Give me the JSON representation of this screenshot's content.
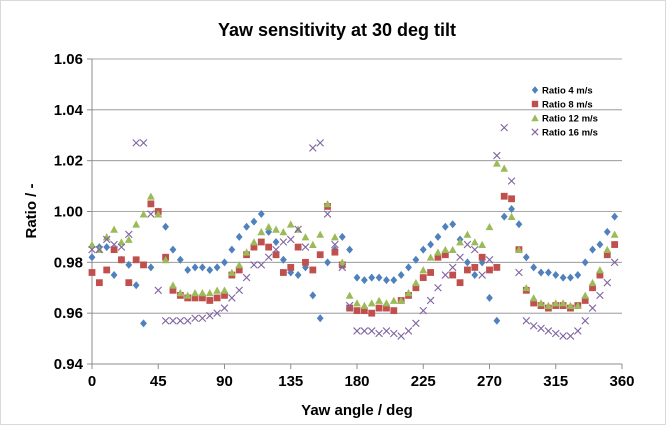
{
  "chart_data": {
    "type": "scatter",
    "title": "Yaw sensitivity at 30 deg tilt",
    "xlabel": "Yaw angle / deg",
    "ylabel": "Ratio / -",
    "xlim": [
      0,
      360
    ],
    "ylim": [
      0.94,
      1.06
    ],
    "xticks": [
      0,
      45,
      90,
      135,
      180,
      225,
      270,
      315,
      360
    ],
    "xtick_labels": [
      "0",
      "45",
      "90",
      "135",
      "180",
      "225",
      "270",
      "315",
      "360"
    ],
    "yticks": [
      0.94,
      0.96,
      0.98,
      1.0,
      1.02,
      1.04,
      1.06
    ],
    "ytick_labels": [
      "0.94",
      "0.96",
      "0.98",
      "1.00",
      "1.02",
      "1.04",
      "1.06"
    ],
    "grid": "horizontal",
    "legend_position": "right",
    "x": [
      0,
      5,
      10,
      15,
      20,
      25,
      30,
      35,
      40,
      45,
      50,
      55,
      60,
      65,
      70,
      75,
      80,
      85,
      90,
      95,
      100,
      105,
      110,
      115,
      120,
      125,
      130,
      135,
      140,
      145,
      150,
      155,
      160,
      165,
      170,
      175,
      180,
      185,
      190,
      195,
      200,
      205,
      210,
      215,
      220,
      225,
      230,
      235,
      240,
      245,
      250,
      255,
      260,
      265,
      270,
      275,
      280,
      285,
      290,
      295,
      300,
      305,
      310,
      315,
      320,
      325,
      330,
      335,
      340,
      345,
      350,
      355
    ],
    "series": [
      {
        "name": "Ratio 4 m/s",
        "color": "#4f81bd",
        "marker": "diamond",
        "values": [
          0.982,
          0.986,
          0.986,
          0.975,
          0.981,
          0.979,
          0.971,
          0.956,
          0.978,
          1.0,
          0.994,
          0.985,
          0.981,
          0.977,
          0.978,
          0.978,
          0.977,
          0.978,
          0.98,
          0.985,
          0.99,
          0.994,
          0.996,
          0.999,
          0.992,
          0.988,
          0.981,
          0.976,
          0.975,
          0.978,
          0.967,
          0.958,
          0.98,
          0.985,
          0.99,
          0.985,
          0.974,
          0.973,
          0.974,
          0.974,
          0.973,
          0.973,
          0.975,
          0.978,
          0.981,
          0.985,
          0.987,
          0.99,
          0.994,
          0.995,
          0.989,
          0.98,
          0.975,
          0.98,
          0.966,
          0.957,
          0.998,
          1.001,
          0.995,
          0.982,
          0.978,
          0.976,
          0.976,
          0.975,
          0.974,
          0.974,
          0.975,
          0.98,
          0.985,
          0.987,
          0.992,
          0.998
        ]
      },
      {
        "name": "Ratio 8 m/s",
        "color": "#c0504d",
        "marker": "square",
        "values": [
          0.976,
          0.972,
          0.977,
          0.985,
          0.981,
          0.972,
          0.981,
          0.979,
          1.003,
          1.0,
          0.982,
          0.969,
          0.967,
          0.966,
          0.966,
          0.966,
          0.965,
          0.966,
          0.967,
          0.975,
          0.977,
          0.983,
          0.986,
          0.988,
          0.986,
          0.983,
          0.976,
          0.978,
          0.986,
          0.98,
          0.977,
          0.983,
          1.002,
          0.984,
          0.979,
          0.962,
          0.961,
          0.961,
          0.96,
          0.962,
          0.962,
          0.961,
          0.965,
          0.967,
          0.97,
          0.974,
          0.976,
          0.982,
          0.983,
          0.975,
          0.972,
          0.977,
          0.978,
          0.982,
          0.977,
          0.978,
          1.006,
          1.005,
          0.985,
          0.969,
          0.964,
          0.963,
          0.962,
          0.963,
          0.963,
          0.962,
          0.963,
          0.965,
          0.97,
          0.975,
          0.983,
          0.987
        ]
      },
      {
        "name": "Ratio 12 m/s",
        "color": "#9bbb59",
        "marker": "triangle",
        "values": [
          0.987,
          0.985,
          0.99,
          0.993,
          0.988,
          0.989,
          0.995,
          0.999,
          1.006,
          0.999,
          0.981,
          0.971,
          0.968,
          0.967,
          0.968,
          0.968,
          0.968,
          0.969,
          0.969,
          0.976,
          0.979,
          0.984,
          0.988,
          0.992,
          0.994,
          0.993,
          0.992,
          0.995,
          0.993,
          0.99,
          0.987,
          0.991,
          1.003,
          0.99,
          0.98,
          0.967,
          0.964,
          0.963,
          0.964,
          0.965,
          0.964,
          0.965,
          0.965,
          0.968,
          0.972,
          0.977,
          0.982,
          0.984,
          0.985,
          0.985,
          0.988,
          0.991,
          0.988,
          0.987,
          0.994,
          1.019,
          1.017,
          0.998,
          0.985,
          0.97,
          0.966,
          0.964,
          0.963,
          0.964,
          0.964,
          0.963,
          0.963,
          0.967,
          0.972,
          0.977,
          0.985,
          0.991
        ]
      },
      {
        "name": "Ratio 16 m/s",
        "color": "#8064a2",
        "marker": "x",
        "values": [
          0.985,
          0.985,
          0.989,
          0.987,
          0.986,
          0.991,
          1.027,
          1.027,
          0.999,
          0.969,
          0.957,
          0.957,
          0.957,
          0.957,
          0.958,
          0.958,
          0.959,
          0.96,
          0.962,
          0.966,
          0.969,
          0.974,
          0.979,
          0.979,
          0.982,
          0.985,
          0.988,
          0.989,
          0.993,
          0.986,
          1.025,
          1.027,
          0.999,
          0.987,
          0.978,
          0.963,
          0.953,
          0.953,
          0.953,
          0.952,
          0.953,
          0.952,
          0.951,
          0.953,
          0.956,
          0.961,
          0.965,
          0.97,
          0.975,
          0.978,
          0.982,
          0.987,
          0.985,
          0.975,
          0.981,
          1.022,
          1.033,
          1.012,
          0.976,
          0.957,
          0.955,
          0.954,
          0.953,
          0.952,
          0.951,
          0.951,
          0.953,
          0.957,
          0.962,
          0.967,
          0.972,
          0.98
        ]
      }
    ]
  }
}
